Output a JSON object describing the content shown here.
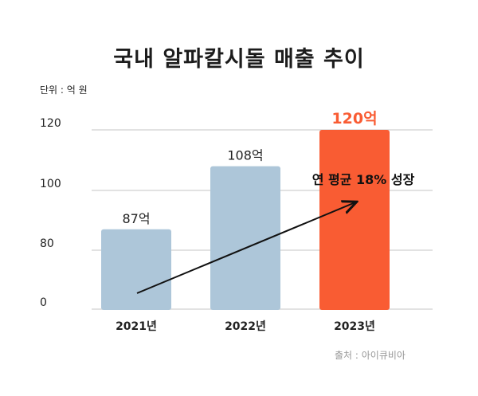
{
  "chart_data": {
    "type": "bar",
    "title": "국내 알파칼시돌 매출 추이",
    "unit_label": "단위 : 억 원",
    "categories": [
      "2021년",
      "2022년",
      "2023년"
    ],
    "values": [
      87,
      108,
      120
    ],
    "data_labels": [
      "87억",
      "108억",
      "120억"
    ],
    "y_ticks": [
      0,
      80,
      100,
      120
    ],
    "y_tick_labels": [
      "0",
      "80",
      "100",
      "120"
    ],
    "y_axis_broken": true,
    "grid": true,
    "bar_colors": [
      "#adc6d9",
      "#adc6d9",
      "#f95c33"
    ],
    "highlight_label_color": "#f95c33",
    "annotation": "연 평균 18% 성장",
    "annotation_arrow": {
      "from": "2021년",
      "to": "2023년"
    },
    "source": "출처 : 아이큐비아"
  }
}
